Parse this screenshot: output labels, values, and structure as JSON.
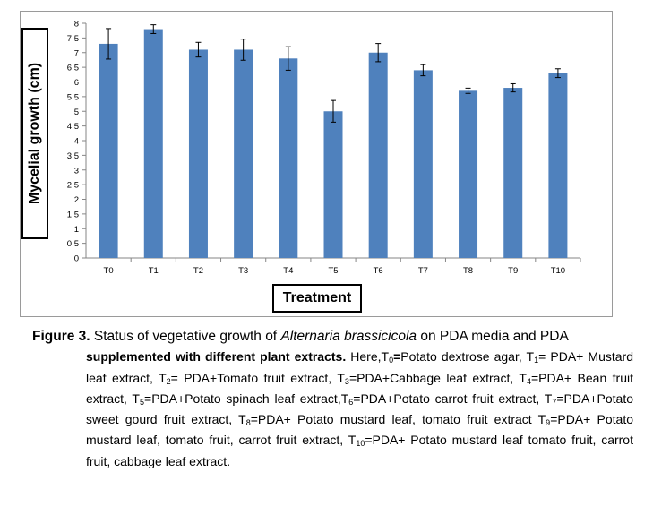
{
  "chart_data": {
    "type": "bar",
    "categories": [
      "T0",
      "T1",
      "T2",
      "T3",
      "T4",
      "T5",
      "T6",
      "T7",
      "T8",
      "T9",
      "T10"
    ],
    "values": [
      7.3,
      7.8,
      7.1,
      7.1,
      6.8,
      5.0,
      7.0,
      6.4,
      5.7,
      5.8,
      6.3
    ],
    "errors": [
      0.52,
      0.15,
      0.25,
      0.36,
      0.4,
      0.37,
      0.31,
      0.19,
      0.09,
      0.14,
      0.15
    ],
    "title": "",
    "xlabel": "Treatment",
    "ylabel": "Mycelial growth (cm)",
    "ylim": [
      0,
      8
    ],
    "yticks": [
      "0",
      "0.5",
      "1",
      "1.5",
      "2",
      "2.5",
      "3",
      "3.5",
      "4",
      "4.5",
      "5",
      "5.5",
      "6",
      "6.5",
      "7",
      "7.5",
      "8"
    ],
    "grid": false,
    "legend": "none",
    "bar_color": "#4f81bd"
  },
  "caption": {
    "figure_label": "Figure 3.",
    "title_a": " Status of vegetative growth of ",
    "title_species": "Alternaria brassicicola",
    "title_b": " on PDA media and PDA",
    "title_c": "supplemented with different plant extracts.",
    "here": " Here,T",
    "t0_sub": "0",
    "t0_eq": "=",
    "t0_desc": "Potato dextrose agar, T",
    "t1_sub": "1",
    "t1_desc": "= PDA+ Mustard leaf extract, T",
    "t2_sub": "2",
    "t2_desc": "= PDA+Tomato fruit extract, T",
    "t3_sub": "3",
    "t3_desc": "=PDA+Cabbage leaf extract, T",
    "t4_sub": "4",
    "t4_desc": "=PDA+ Bean fruit extract, T",
    "t5_sub": "5",
    "t5_desc": "=PDA+Potato spinach leaf extract,T",
    "t6_sub": "6",
    "t6_desc": "=PDA+Potato carrot fruit extract, T",
    "t7_sub": "7",
    "t7_desc": "=PDA+Potato sweet gourd fruit extract, T",
    "t8_sub": "8",
    "t8_desc": "=PDA+ Potato mustard leaf, tomato fruit extract T",
    "t9_sub": "9",
    "t9_desc": "=PDA+ Potato mustard leaf, tomato fruit, carrot fruit extract,   T",
    "t10_sub": "10",
    "t10_desc": "=PDA+ Potato mustard leaf tomato fruit, carrot fruit, cabbage leaf extract."
  }
}
